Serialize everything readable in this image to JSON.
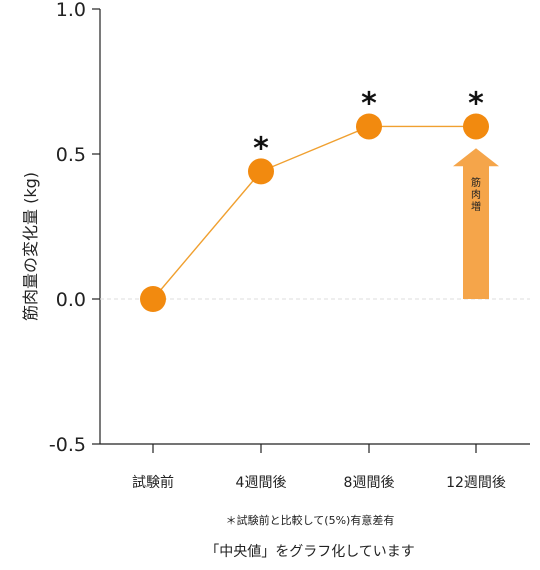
{
  "chart_data": {
    "type": "line",
    "categories": [
      "試験前",
      "4週間後",
      "8週間後",
      "12週間後"
    ],
    "values": [
      0.0,
      0.44,
      0.595,
      0.595
    ],
    "significant": [
      false,
      true,
      true,
      true
    ],
    "significance_marker": "*",
    "ylabel": "筋肉量の変化量 (kg)",
    "ylim": [
      -0.5,
      1.0
    ],
    "yticks": [
      {
        "value": 1.0,
        "label": "1.0"
      },
      {
        "value": 0.5,
        "label": "0.5"
      },
      {
        "value": 0.0,
        "label": "0.0"
      },
      {
        "value": -0.5,
        "label": "-0.5"
      }
    ],
    "zero_line": "dashed",
    "annotation_arrow": {
      "label": "筋肉増",
      "category_index": 3,
      "from": 0.0,
      "to": 0.52
    },
    "colors": {
      "line": "#f0a030",
      "marker": "#f28a0f",
      "arrow": "#f5a54a",
      "axis": "#222222",
      "zero_line": "#dddddd"
    }
  },
  "footnote": "＊試験前と比較して(5%)有意差有",
  "caption": "「中央値」をグラフ化しています"
}
